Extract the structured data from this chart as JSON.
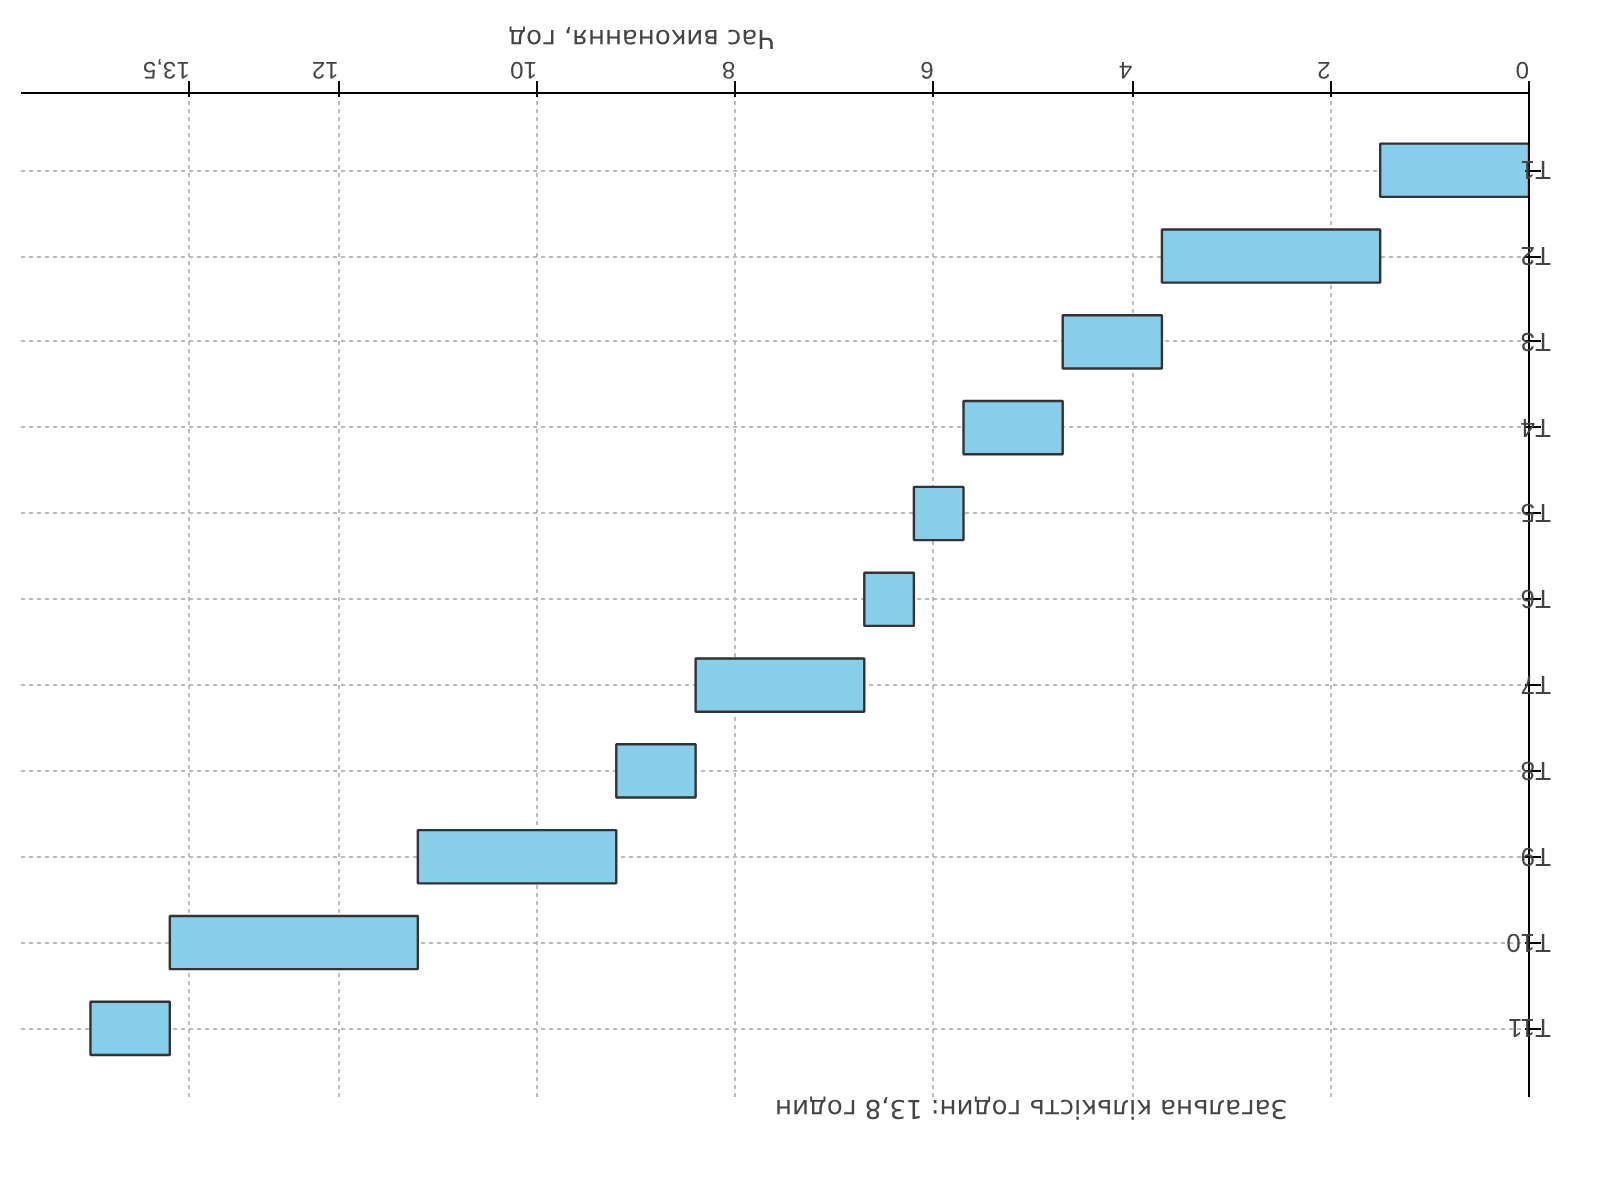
{
  "chart_data": {
    "type": "bar",
    "orientation": "horizontal",
    "xlabel": "Час виконання, год",
    "categories": [
      "T1",
      "T2",
      "T3",
      "T4",
      "T5",
      "T6",
      "T7",
      "T8",
      "T9",
      "T10",
      "T11"
    ],
    "base": [
      0,
      1.5,
      3.7,
      4.7,
      5.7,
      6.2,
      6.7,
      8.4,
      9.2,
      11.2,
      13.7
    ],
    "values": [
      1.5,
      2.2,
      1.0,
      1.0,
      0.5,
      0.5,
      1.7,
      0.8,
      2.0,
      2.5,
      0.8
    ],
    "color": "#87ceeb",
    "xlim": [
      15.2,
      0
    ],
    "xticks": [
      0,
      2,
      4,
      6,
      8,
      10,
      12,
      {
        "value": 13.5,
        "label": "13,5"
      }
    ],
    "grid": true,
    "annotations": [
      "Загальна кількість годин: 13,8 годин"
    ]
  }
}
